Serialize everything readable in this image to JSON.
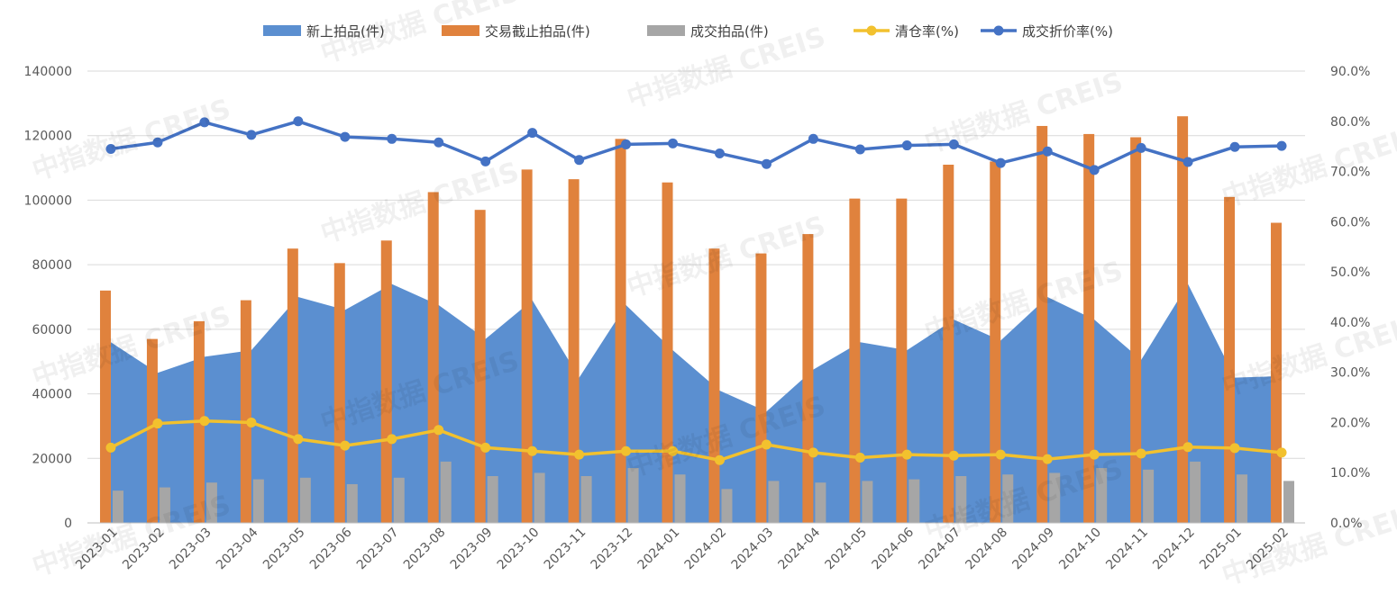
{
  "chart_data": {
    "type": "bar",
    "categories": [
      "2023-01",
      "2023-02",
      "2023-03",
      "2023-04",
      "2023-05",
      "2023-06",
      "2023-07",
      "2023-08",
      "2023-09",
      "2023-10",
      "2023-11",
      "2023-12",
      "2024-01",
      "2024-02",
      "2024-03",
      "2024-04",
      "2024-05",
      "2024-06",
      "2024-07",
      "2024-08",
      "2024-09",
      "2024-10",
      "2024-11",
      "2024-12",
      "2025-01",
      "2025-02"
    ],
    "left_axis": {
      "ylim": [
        0,
        140000
      ],
      "ticks": [
        "0",
        "20000",
        "40000",
        "60000",
        "80000",
        "100000",
        "120000",
        "140000"
      ]
    },
    "right_axis": {
      "ylim": [
        0,
        90
      ],
      "ticks": [
        "0.0%",
        "10.0%",
        "20.0%",
        "30.0%",
        "40.0%",
        "50.0%",
        "60.0%",
        "70.0%",
        "80.0%",
        "90.0%"
      ]
    },
    "grid": true,
    "legend_position": "top",
    "series": [
      {
        "name": "新上拍品(件)",
        "type": "area",
        "axis": "left",
        "color": "#5B8FD0",
        "values": [
          56000,
          46500,
          51500,
          53500,
          70000,
          66000,
          74000,
          67500,
          57000,
          69000,
          45000,
          67500,
          53500,
          41000,
          34500,
          47500,
          56000,
          53500,
          63000,
          56500,
          70000,
          63000,
          50500,
          74000,
          45000,
          45500
        ]
      },
      {
        "name": "交易截止拍品(件)",
        "type": "bar",
        "axis": "left",
        "color": "#E0823D",
        "values": [
          72000,
          57000,
          62500,
          69000,
          85000,
          80500,
          87500,
          102500,
          97000,
          109500,
          106500,
          119000,
          105500,
          85000,
          83500,
          89500,
          100500,
          100500,
          111000,
          112000,
          123000,
          120500,
          119500,
          126000,
          101000,
          93000
        ]
      },
      {
        "name": "成交拍品(件)",
        "type": "bar",
        "axis": "left",
        "color": "#A6A6A6",
        "values": [
          10000,
          11000,
          12500,
          13500,
          14000,
          12000,
          14000,
          19000,
          14500,
          15500,
          14500,
          17000,
          15000,
          10500,
          13000,
          12500,
          13000,
          13500,
          14500,
          15000,
          15500,
          17000,
          16500,
          19000,
          15000,
          13000
        ]
      },
      {
        "name": "清仓率(%)",
        "type": "line",
        "axis": "right",
        "color": "#F2C12E",
        "values": [
          15.0,
          19.8,
          20.3,
          20.0,
          16.7,
          15.4,
          16.7,
          18.5,
          15.0,
          14.3,
          13.6,
          14.3,
          14.3,
          12.5,
          15.6,
          14.0,
          13.0,
          13.6,
          13.4,
          13.6,
          12.7,
          13.6,
          13.8,
          15.1,
          14.9,
          14.0
        ]
      },
      {
        "name": "成交折价率(%)",
        "type": "line",
        "axis": "right",
        "color": "#4472C4",
        "values": [
          74.5,
          75.8,
          79.8,
          77.3,
          80.0,
          76.9,
          76.5,
          75.8,
          72.0,
          77.7,
          72.3,
          75.4,
          75.6,
          73.6,
          71.5,
          76.5,
          74.4,
          75.2,
          75.4,
          71.7,
          74.0,
          70.3,
          74.7,
          71.9,
          74.9,
          75.1
        ]
      }
    ]
  },
  "watermark": "中指数据  CREIS"
}
